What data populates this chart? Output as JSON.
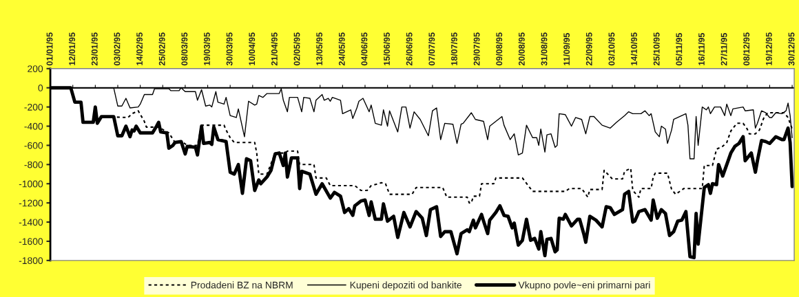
{
  "chart_data": {
    "type": "line",
    "legend": "bottom",
    "grid": false,
    "ref_lines": [
      {
        "axis": "y",
        "value": 0,
        "color": "#000000"
      }
    ],
    "xlim": [
      "1995-01-01",
      "1995-12-31"
    ],
    "ylim": [
      -1800,
      200
    ],
    "yticks": [
      200,
      0,
      -200,
      -400,
      -600,
      -800,
      -1000,
      -1200,
      -1400,
      -1600,
      -1800
    ],
    "xticks": [
      {
        "value": "1995-01-01",
        "label": "01/01/95"
      },
      {
        "value": "1995-01-12",
        "label": "12/01/95"
      },
      {
        "value": "1995-01-23",
        "label": "23/01/95"
      },
      {
        "value": "1995-02-03",
        "label": "03/02/95"
      },
      {
        "value": "1995-02-14",
        "label": "14/02/95"
      },
      {
        "value": "1995-02-25",
        "label": "25/02/95"
      },
      {
        "value": "1995-03-08",
        "label": "08/03/95"
      },
      {
        "value": "1995-03-19",
        "label": "19/03/95"
      },
      {
        "value": "1995-03-30",
        "label": "30/03/95"
      },
      {
        "value": "1995-04-10",
        "label": "10/04/95"
      },
      {
        "value": "1995-04-21",
        "label": "21/04/95"
      },
      {
        "value": "1995-05-02",
        "label": "02/05/95"
      },
      {
        "value": "1995-05-13",
        "label": "13/05/95"
      },
      {
        "value": "1995-05-24",
        "label": "24/05/95"
      },
      {
        "value": "1995-06-04",
        "label": "04/06/95"
      },
      {
        "value": "1995-06-15",
        "label": "15/06/95"
      },
      {
        "value": "1995-06-26",
        "label": "26/06/95"
      },
      {
        "value": "1995-07-07",
        "label": "07/07/95"
      },
      {
        "value": "1995-07-18",
        "label": "18/07/95"
      },
      {
        "value": "1995-07-29",
        "label": "29/07/95"
      },
      {
        "value": "1995-08-09",
        "label": "09/08/95"
      },
      {
        "value": "1995-08-20",
        "label": "20/08/95"
      },
      {
        "value": "1995-08-31",
        "label": "31/08/95"
      },
      {
        "value": "1995-09-11",
        "label": "11/09/95"
      },
      {
        "value": "1995-09-22",
        "label": "22/09/95"
      },
      {
        "value": "1995-10-03",
        "label": "03/10/95"
      },
      {
        "value": "1995-10-14",
        "label": "14/10/95"
      },
      {
        "value": "1995-10-25",
        "label": "25/10/95"
      },
      {
        "value": "1995-11-05",
        "label": "05/11/95"
      },
      {
        "value": "1995-11-16",
        "label": "16/11/95"
      },
      {
        "value": "1995-11-27",
        "label": "27/11/95"
      },
      {
        "value": "1995-12-08",
        "label": "08/12/95"
      },
      {
        "value": "1995-12-19",
        "label": "19/12/95"
      },
      {
        "value": "1995-12-30",
        "label": "30/12/95"
      }
    ],
    "series": [
      {
        "name": "Prodadeni BZ na NBRM",
        "color": "#000000",
        "line_style": "dotted",
        "x": [
          "1995-01-01",
          "1995-01-11",
          "1995-01-13",
          "1995-01-16",
          "1995-01-17",
          "1995-01-22",
          "1995-01-26",
          "1995-02-08",
          "1995-02-10",
          "1995-02-13",
          "1995-02-16",
          "1995-02-17",
          "1995-02-23",
          "1995-02-28",
          "1995-03-03",
          "1995-03-07",
          "1995-03-09",
          "1995-03-14",
          "1995-03-16",
          "1995-03-27",
          "1995-03-28",
          "1995-03-30",
          "1995-04-01",
          "1995-04-11",
          "1995-04-12",
          "1995-04-13",
          "1995-04-17",
          "1995-04-19",
          "1995-04-21",
          "1995-04-26",
          "1995-04-27",
          "1995-05-02",
          "1995-05-03",
          "1995-05-10",
          "1995-05-11",
          "1995-05-16",
          "1995-05-18",
          "1995-05-30",
          "1995-06-02",
          "1995-06-05",
          "1995-06-07",
          "1995-06-12",
          "1995-06-14",
          "1995-06-16",
          "1995-06-27",
          "1995-06-29",
          "1995-07-12",
          "1995-07-14",
          "1995-07-24",
          "1995-07-25",
          "1995-07-26",
          "1995-07-27",
          "1995-07-30",
          "1995-07-31",
          "1995-08-06",
          "1995-08-07",
          "1995-08-20",
          "1995-08-25",
          "1995-09-10",
          "1995-09-12",
          "1995-09-18",
          "1995-09-21",
          "1995-09-22",
          "1995-09-28",
          "1995-09-29",
          "1995-10-03",
          "1995-10-08",
          "1995-10-09",
          "1995-10-12",
          "1995-10-13",
          "1995-10-16",
          "1995-10-17",
          "1995-10-22",
          "1995-10-23",
          "1995-10-24",
          "1995-10-30",
          "1995-11-01",
          "1995-11-03",
          "1995-11-07",
          "1995-11-16",
          "1995-11-17",
          "1995-11-21",
          "1995-11-23",
          "1995-11-26",
          "1995-11-28",
          "1995-11-30",
          "1995-12-03",
          "1995-12-06",
          "1995-12-08",
          "1995-12-09",
          "1995-12-12",
          "1995-12-14",
          "1995-12-16",
          "1995-12-18",
          "1995-12-26",
          "1995-12-28",
          "1995-12-30"
        ],
        "values": [
          0,
          0,
          -150,
          -150,
          -360,
          -360,
          -300,
          -310,
          -270,
          -240,
          -350,
          -410,
          -410,
          -470,
          -570,
          -570,
          -600,
          -600,
          -390,
          -390,
          -440,
          -520,
          -570,
          -570,
          -680,
          -900,
          -900,
          -790,
          -680,
          -680,
          -660,
          -660,
          -800,
          -800,
          -940,
          -940,
          -1020,
          -1020,
          -1070,
          -1070,
          -1020,
          -990,
          -1000,
          -1110,
          -1110,
          -1040,
          -1040,
          -1140,
          -1140,
          -1200,
          -1200,
          -1130,
          -1130,
          -1000,
          -1000,
          -940,
          -940,
          -1080,
          -1080,
          -1050,
          -1050,
          -1140,
          -1060,
          -1060,
          -860,
          -950,
          -950,
          -870,
          -840,
          -1070,
          -1140,
          -1050,
          -1050,
          -930,
          -890,
          -890,
          -1060,
          -1110,
          -1050,
          -1050,
          -810,
          -810,
          -640,
          -610,
          -570,
          -450,
          -370,
          -370,
          -430,
          -480,
          -480,
          -440,
          -320,
          -260,
          -260,
          -310,
          -430
        ]
      },
      {
        "name": "Kupeni depoziti od bankite",
        "color": "#000000",
        "line_style": "solid",
        "x": [
          "1995-01-01",
          "1995-02-01",
          "1995-02-03",
          "1995-02-05",
          "1995-02-07",
          "1995-02-09",
          "1995-02-13",
          "1995-02-14",
          "1995-02-16",
          "1995-02-20",
          "1995-02-21",
          "1995-02-28",
          "1995-03-01",
          "1995-03-05",
          "1995-03-06",
          "1995-03-08",
          "1995-03-13",
          "1995-03-14",
          "1995-03-16",
          "1995-03-18",
          "1995-03-20",
          "1995-03-21",
          "1995-03-23",
          "1995-03-24",
          "1995-03-27",
          "1995-03-28",
          "1995-03-30",
          "1995-04-02",
          "1995-04-03",
          "1995-04-06",
          "1995-04-08",
          "1995-04-11",
          "1995-04-12",
          "1995-04-13",
          "1995-04-15",
          "1995-04-17",
          "1995-04-23",
          "1995-04-24",
          "1995-04-25",
          "1995-04-27",
          "1995-04-28",
          "1995-05-02",
          "1995-05-04",
          "1995-05-05",
          "1995-05-08",
          "1995-05-10",
          "1995-05-11",
          "1995-05-14",
          "1995-05-15",
          "1995-05-17",
          "1995-05-18",
          "1995-05-19",
          "1995-05-23",
          "1995-05-24",
          "1995-05-28",
          "1995-05-29",
          "1995-05-31",
          "1995-06-01",
          "1995-06-03",
          "1995-06-06",
          "1995-06-07",
          "1995-06-09",
          "1995-06-12",
          "1995-06-13",
          "1995-06-15",
          "1995-06-16",
          "1995-06-20",
          "1995-06-22",
          "1995-06-24",
          "1995-06-26",
          "1995-06-28",
          "1995-07-01",
          "1995-07-05",
          "1995-07-07",
          "1995-07-09",
          "1995-07-11",
          "1995-07-13",
          "1995-07-17",
          "1995-07-19",
          "1995-07-21",
          "1995-07-22",
          "1995-07-26",
          "1995-07-28",
          "1995-08-01",
          "1995-08-03",
          "1995-08-04",
          "1995-08-07",
          "1995-08-10",
          "1995-08-11",
          "1995-08-14",
          "1995-08-16",
          "1995-08-18",
          "1995-08-20",
          "1995-08-22",
          "1995-08-25",
          "1995-08-27",
          "1995-08-28",
          "1995-08-29",
          "1995-08-31",
          "1995-09-01",
          "1995-09-03",
          "1995-09-05",
          "1995-09-06",
          "1995-09-07",
          "1995-09-10",
          "1995-09-11",
          "1995-09-13",
          "1995-09-15",
          "1995-09-18",
          "1995-09-20",
          "1995-09-22",
          "1995-09-24",
          "1995-09-28",
          "1995-10-02",
          "1995-10-05",
          "1995-10-09",
          "1995-10-11",
          "1995-10-13",
          "1995-10-17",
          "1995-10-19",
          "1995-10-21",
          "1995-10-22",
          "1995-10-24",
          "1995-10-26",
          "1995-10-27",
          "1995-10-29",
          "1995-10-30",
          "1995-11-01",
          "1995-11-02",
          "1995-11-06",
          "1995-11-08",
          "1995-11-09",
          "1995-11-10",
          "1995-11-12",
          "1995-11-13",
          "1995-11-14",
          "1995-11-16",
          "1995-11-18",
          "1995-11-19",
          "1995-11-20",
          "1995-11-22",
          "1995-11-25",
          "1995-11-27",
          "1995-11-28",
          "1995-11-30",
          "1995-12-01",
          "1995-12-06",
          "1995-12-07",
          "1995-12-11",
          "1995-12-12",
          "1995-12-13",
          "1995-12-15",
          "1995-12-17",
          "1995-12-19",
          "1995-12-20",
          "1995-12-22",
          "1995-12-25",
          "1995-12-27",
          "1995-12-28",
          "1995-12-29",
          "1995-12-30"
        ],
        "values": [
          0,
          0,
          -190,
          -190,
          -110,
          -210,
          -200,
          -170,
          -70,
          -70,
          -10,
          -10,
          -30,
          -30,
          0,
          -40,
          -40,
          -130,
          -20,
          -190,
          -180,
          -200,
          -40,
          -150,
          -170,
          -100,
          -290,
          -310,
          -220,
          -510,
          -140,
          -180,
          -170,
          -80,
          -100,
          -60,
          -60,
          -10,
          -130,
          -250,
          -100,
          -100,
          -250,
          -100,
          -110,
          -250,
          -130,
          -70,
          -130,
          -110,
          -140,
          -100,
          -130,
          -270,
          -230,
          -320,
          -210,
          -140,
          -110,
          -250,
          -180,
          -370,
          -390,
          -230,
          -400,
          -240,
          -460,
          -200,
          -200,
          -420,
          -250,
          -330,
          -500,
          -240,
          -210,
          -540,
          -370,
          -380,
          -580,
          -380,
          -370,
          -260,
          -330,
          -350,
          -540,
          -400,
          -350,
          -300,
          -390,
          -540,
          -480,
          -700,
          -680,
          -390,
          -520,
          -520,
          -600,
          -430,
          -670,
          -490,
          -480,
          -620,
          -600,
          -270,
          -280,
          -320,
          -400,
          -310,
          -330,
          -480,
          -300,
          -300,
          -390,
          -420,
          -360,
          -290,
          -250,
          -270,
          -270,
          -240,
          -290,
          -270,
          -460,
          -510,
          -400,
          -430,
          -580,
          -440,
          -330,
          -290,
          -270,
          -390,
          -740,
          -740,
          -300,
          -600,
          -200,
          -230,
          -200,
          -270,
          -200,
          -200,
          -290,
          -170,
          -290,
          -220,
          -200,
          -240,
          -230,
          -420,
          -370,
          -240,
          -260,
          -310,
          -310,
          -260,
          -270,
          -240,
          -160,
          -290,
          -520
        ]
      },
      {
        "name": "Vkupno povle~eni primarni pari",
        "color": "#000000",
        "line_style": "solid",
        "x": [
          "1995-01-01",
          "1995-01-11",
          "1995-01-13",
          "1995-01-16",
          "1995-01-17",
          "1995-01-22",
          "1995-01-23",
          "1995-01-24",
          "1995-01-26",
          "1995-02-01",
          "1995-02-03",
          "1995-02-05",
          "1995-02-07",
          "1995-02-09",
          "1995-02-10",
          "1995-02-11",
          "1995-02-12",
          "1995-02-14",
          "1995-02-20",
          "1995-02-22",
          "1995-02-23",
          "1995-02-24",
          "1995-02-27",
          "1995-02-28",
          "1995-03-02",
          "1995-03-03",
          "1995-03-06",
          "1995-03-08",
          "1995-03-09",
          "1995-03-13",
          "1995-03-14",
          "1995-03-16",
          "1995-03-17",
          "1995-03-20",
          "1995-03-21",
          "1995-03-22",
          "1995-03-24",
          "1995-03-28",
          "1995-03-29",
          "1995-03-30",
          "1995-04-01",
          "1995-04-03",
          "1995-04-05",
          "1995-04-07",
          "1995-04-09",
          "1995-04-11",
          "1995-04-13",
          "1995-04-14",
          "1995-04-17",
          "1995-04-19",
          "1995-04-21",
          "1995-04-23",
          "1995-04-25",
          "1995-04-26",
          "1995-04-27",
          "1995-04-29",
          "1995-05-02",
          "1995-05-03",
          "1995-05-04",
          "1995-05-08",
          "1995-05-11",
          "1995-05-14",
          "1995-05-18",
          "1995-05-20",
          "1995-05-23",
          "1995-05-25",
          "1995-05-27",
          "1995-05-29",
          "1995-05-30",
          "1995-06-02",
          "1995-06-04",
          "1995-06-06",
          "1995-06-07",
          "1995-06-09",
          "1995-06-12",
          "1995-06-13",
          "1995-06-15",
          "1995-06-18",
          "1995-06-20",
          "1995-06-23",
          "1995-06-26",
          "1995-06-29",
          "1995-07-02",
          "1995-07-04",
          "1995-07-06",
          "1995-07-09",
          "1995-07-11",
          "1995-07-13",
          "1995-07-16",
          "1995-07-19",
          "1995-07-21",
          "1995-07-24",
          "1995-07-25",
          "1995-07-27",
          "1995-07-28",
          "1995-07-31",
          "1995-08-01",
          "1995-08-03",
          "1995-08-04",
          "1995-08-07",
          "1995-08-09",
          "1995-08-11",
          "1995-08-13",
          "1995-08-15",
          "1995-08-16",
          "1995-08-18",
          "1995-08-20",
          "1995-08-22",
          "1995-08-24",
          "1995-08-26",
          "1995-08-28",
          "1995-08-29",
          "1995-08-31",
          "1995-09-01",
          "1995-09-03",
          "1995-09-05",
          "1995-09-06",
          "1995-09-07",
          "1995-09-09",
          "1995-09-10",
          "1995-09-13",
          "1995-09-16",
          "1995-09-17",
          "1995-09-19",
          "1995-09-20",
          "1995-09-22",
          "1995-09-25",
          "1995-09-28",
          "1995-09-30",
          "1995-10-02",
          "1995-10-04",
          "1995-10-08",
          "1995-10-09",
          "1995-10-11",
          "1995-10-13",
          "1995-10-14",
          "1995-10-16",
          "1995-10-19",
          "1995-10-22",
          "1995-10-23",
          "1995-10-25",
          "1995-10-27",
          "1995-10-29",
          "1995-10-31",
          "1995-11-02",
          "1995-11-04",
          "1995-11-06",
          "1995-11-08",
          "1995-11-10",
          "1995-11-12",
          "1995-11-13",
          "1995-11-14",
          "1995-11-17",
          "1995-11-19",
          "1995-11-20",
          "1995-11-21",
          "1995-11-23",
          "1995-11-24",
          "1995-11-26",
          "1995-11-28",
          "1995-11-30",
          "1995-12-02",
          "1995-12-04",
          "1995-12-06",
          "1995-12-07",
          "1995-12-10",
          "1995-12-12",
          "1995-12-13",
          "1995-12-15",
          "1995-12-17",
          "1995-12-19",
          "1995-12-22",
          "1995-12-25",
          "1995-12-26",
          "1995-12-28",
          "1995-12-29",
          "1995-12-30"
        ],
        "values": [
          0,
          0,
          -150,
          -150,
          -360,
          -360,
          -200,
          -370,
          -300,
          -300,
          -500,
          -500,
          -400,
          -510,
          -440,
          -450,
          -400,
          -470,
          -470,
          -400,
          -360,
          -460,
          -470,
          -630,
          -600,
          -570,
          -560,
          -690,
          -610,
          -620,
          -700,
          -400,
          -580,
          -570,
          -590,
          -410,
          -540,
          -560,
          -720,
          -880,
          -900,
          -800,
          -1100,
          -740,
          -760,
          -1070,
          -960,
          -1000,
          -930,
          -860,
          -690,
          -680,
          -810,
          -680,
          -930,
          -730,
          -730,
          -1050,
          -870,
          -900,
          -1110,
          -1000,
          -1150,
          -1090,
          -1130,
          -1300,
          -1260,
          -1330,
          -1230,
          -1180,
          -1170,
          -1330,
          -1190,
          -1370,
          -1370,
          -1210,
          -1390,
          -1340,
          -1560,
          -1300,
          -1450,
          -1290,
          -1360,
          -1540,
          -1270,
          -1240,
          -1550,
          -1500,
          -1500,
          -1730,
          -1520,
          -1480,
          -1500,
          -1380,
          -1460,
          -1320,
          -1390,
          -1520,
          -1380,
          -1300,
          -1230,
          -1330,
          -1340,
          -1460,
          -1410,
          -1640,
          -1590,
          -1370,
          -1590,
          -1570,
          -1680,
          -1500,
          -1750,
          -1580,
          -1570,
          -1710,
          -1690,
          -1360,
          -1370,
          -1320,
          -1440,
          -1370,
          -1370,
          -1520,
          -1610,
          -1340,
          -1380,
          -1450,
          -1240,
          -1250,
          -1320,
          -1270,
          -1110,
          -1080,
          -1400,
          -1390,
          -1290,
          -1270,
          -1380,
          -1170,
          -1360,
          -1270,
          -1310,
          -1540,
          -1500,
          -1390,
          -1380,
          -1290,
          -1760,
          -1770,
          -1310,
          -1630,
          -1040,
          -1010,
          -1100,
          -1000,
          -1010,
          -800,
          -920,
          -800,
          -680,
          -610,
          -580,
          -510,
          -760,
          -680,
          -880,
          -760,
          -550,
          -560,
          -580,
          -510,
          -540,
          -540,
          -420,
          -570,
          -1030
        ]
      }
    ]
  }
}
